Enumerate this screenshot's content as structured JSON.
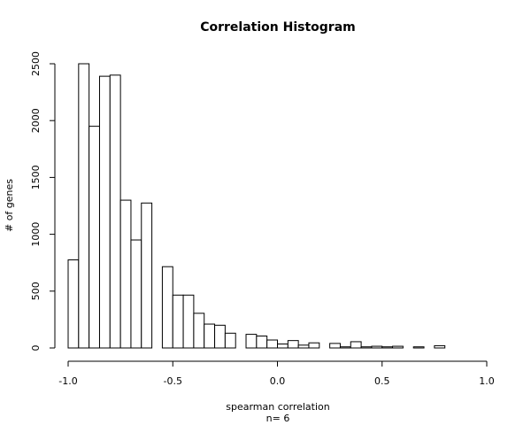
{
  "chart_data": {
    "type": "bar",
    "title": "Correlation Histogram",
    "xlabel": "spearman correlation",
    "xlabel2": "n= 6",
    "ylabel": "# of genes",
    "xlim": [
      -1.0,
      1.0
    ],
    "ylim": [
      0,
      2500
    ],
    "x_ticks": [
      -1.0,
      -0.5,
      0.0,
      0.5,
      1.0
    ],
    "x_tick_labels": [
      "-1.0",
      "-0.5",
      "0.0",
      "0.5",
      "1.0"
    ],
    "y_ticks": [
      0,
      500,
      1000,
      1500,
      2000,
      2500
    ],
    "y_tick_labels": [
      "0",
      "500",
      "1000",
      "1500",
      "2000",
      "2500"
    ],
    "bin_width": 0.05,
    "bins": [
      {
        "x0": -1.0,
        "x1": -0.95,
        "count": 775
      },
      {
        "x0": -0.95,
        "x1": -0.9,
        "count": 2500
      },
      {
        "x0": -0.9,
        "x1": -0.85,
        "count": 1950
      },
      {
        "x0": -0.85,
        "x1": -0.8,
        "count": 2390
      },
      {
        "x0": -0.8,
        "x1": -0.75,
        "count": 2400
      },
      {
        "x0": -0.75,
        "x1": -0.7,
        "count": 1300
      },
      {
        "x0": -0.7,
        "x1": -0.65,
        "count": 950
      },
      {
        "x0": -0.65,
        "x1": -0.6,
        "count": 1275
      },
      {
        "x0": -0.6,
        "x1": -0.55,
        "count": 0
      },
      {
        "x0": -0.55,
        "x1": -0.5,
        "count": 715
      },
      {
        "x0": -0.5,
        "x1": -0.45,
        "count": 465
      },
      {
        "x0": -0.45,
        "x1": -0.4,
        "count": 465
      },
      {
        "x0": -0.4,
        "x1": -0.35,
        "count": 305
      },
      {
        "x0": -0.35,
        "x1": -0.3,
        "count": 210
      },
      {
        "x0": -0.3,
        "x1": -0.25,
        "count": 200
      },
      {
        "x0": -0.25,
        "x1": -0.2,
        "count": 130
      },
      {
        "x0": -0.2,
        "x1": -0.15,
        "count": 0
      },
      {
        "x0": -0.15,
        "x1": -0.1,
        "count": 120
      },
      {
        "x0": -0.1,
        "x1": -0.05,
        "count": 105
      },
      {
        "x0": -0.05,
        "x1": 0.0,
        "count": 70
      },
      {
        "x0": 0.0,
        "x1": 0.05,
        "count": 35
      },
      {
        "x0": 0.05,
        "x1": 0.1,
        "count": 65
      },
      {
        "x0": 0.1,
        "x1": 0.15,
        "count": 25
      },
      {
        "x0": 0.15,
        "x1": 0.2,
        "count": 45
      },
      {
        "x0": 0.2,
        "x1": 0.25,
        "count": 0
      },
      {
        "x0": 0.25,
        "x1": 0.3,
        "count": 40
      },
      {
        "x0": 0.3,
        "x1": 0.35,
        "count": 10
      },
      {
        "x0": 0.35,
        "x1": 0.4,
        "count": 55
      },
      {
        "x0": 0.4,
        "x1": 0.45,
        "count": 10
      },
      {
        "x0": 0.45,
        "x1": 0.5,
        "count": 15
      },
      {
        "x0": 0.5,
        "x1": 0.55,
        "count": 10
      },
      {
        "x0": 0.55,
        "x1": 0.6,
        "count": 15
      },
      {
        "x0": 0.6,
        "x1": 0.65,
        "count": 0
      },
      {
        "x0": 0.65,
        "x1": 0.7,
        "count": 10
      },
      {
        "x0": 0.7,
        "x1": 0.75,
        "count": 0
      },
      {
        "x0": 0.75,
        "x1": 0.8,
        "count": 20
      },
      {
        "x0": 0.8,
        "x1": 0.85,
        "count": 0
      },
      {
        "x0": 0.85,
        "x1": 0.9,
        "count": 0
      },
      {
        "x0": 0.9,
        "x1": 0.95,
        "count": 0
      },
      {
        "x0": 0.95,
        "x1": 1.0,
        "count": 0
      }
    ],
    "grid": false
  }
}
